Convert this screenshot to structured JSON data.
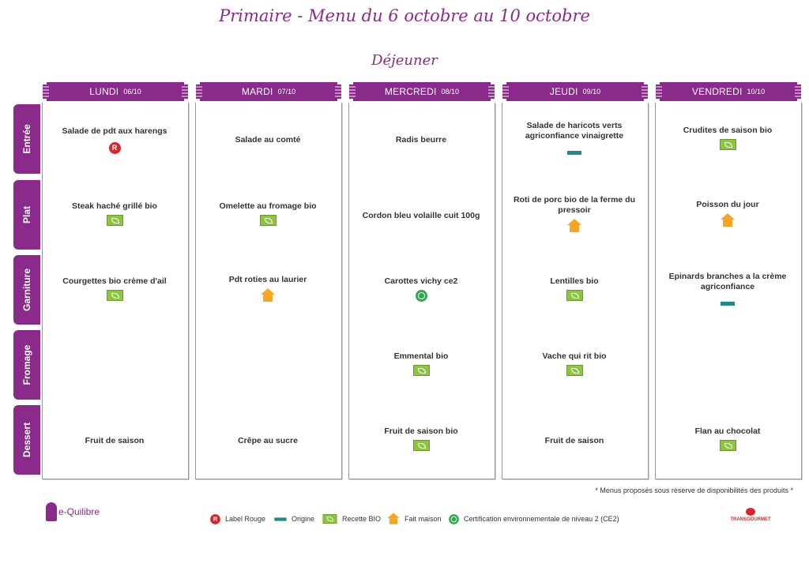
{
  "header": {
    "title": "Primaire - Menu du 6 octobre au 10 octobre",
    "subtitle": "Déjeuner"
  },
  "rows": [
    "Entrée",
    "Plat",
    "Garniture",
    "Fromage",
    "Dessert"
  ],
  "days": [
    {
      "name": "LUNDI",
      "date": "06/10",
      "items": [
        {
          "dish": "Salade de pdt aux harengs",
          "label": "label-rouge"
        },
        {
          "dish": "Steak haché grillé bio",
          "label": "bio"
        },
        {
          "dish": "Courgettes bio crème d'ail",
          "label": "bio"
        },
        {
          "dish": "",
          "label": ""
        },
        {
          "dish": "Fruit de saison",
          "label": ""
        }
      ]
    },
    {
      "name": "MARDI",
      "date": "07/10",
      "items": [
        {
          "dish": "Salade au comté",
          "label": ""
        },
        {
          "dish": "Omelette au fromage bio",
          "label": "bio"
        },
        {
          "dish": "Pdt roties au laurier",
          "label": "fait-maison"
        },
        {
          "dish": "",
          "label": ""
        },
        {
          "dish": "Crêpe au sucre",
          "label": ""
        }
      ]
    },
    {
      "name": "MERCREDI",
      "date": "08/10",
      "items": [
        {
          "dish": "Radis beurre",
          "label": ""
        },
        {
          "dish": "Cordon bleu volaille cuit 100g",
          "label": ""
        },
        {
          "dish": "Carottes vichy ce2",
          "label": "ce2"
        },
        {
          "dish": "Emmental bio",
          "label": "bio"
        },
        {
          "dish": "Fruit de saison bio",
          "label": "bio"
        }
      ]
    },
    {
      "name": "JEUDI",
      "date": "09/10",
      "items": [
        {
          "dish": "Salade de haricots verts agriconfiance vinaigrette",
          "label": "origine"
        },
        {
          "dish": "Roti de porc bio de la ferme du pressoir",
          "label": "fait-maison"
        },
        {
          "dish": "Lentilles bio",
          "label": "bio"
        },
        {
          "dish": "Vache qui rit bio",
          "label": "bio"
        },
        {
          "dish": "Fruit de saison",
          "label": ""
        }
      ]
    },
    {
      "name": "VENDREDI",
      "date": "10/10",
      "items": [
        {
          "dish": "Crudites de saison bio",
          "label": "bio"
        },
        {
          "dish": "Poisson du jour",
          "label": "fait-maison"
        },
        {
          "dish": "Epinards branches a la crème agriconfiance",
          "label": "origine"
        },
        {
          "dish": "",
          "label": ""
        },
        {
          "dish": "Flan au chocolat",
          "label": "bio"
        }
      ]
    }
  ],
  "footer": {
    "note": "* Menus proposés sous réserve de disponibilités des produits *",
    "brand": "e-Quilibre",
    "partner": "TRANSGOURMET",
    "legend": [
      {
        "icon": "label-rouge",
        "text": "Label Rouge"
      },
      {
        "icon": "origine",
        "text": "Origine"
      },
      {
        "icon": "bio",
        "text": "Recette BIO"
      },
      {
        "icon": "fait-maison",
        "text": "Fait maison"
      },
      {
        "icon": "ce2",
        "text": "Certification environnementale de niveau 2 (CE2)"
      }
    ]
  },
  "colors": {
    "accent": "#8a2a8a",
    "bio": "#8cc63f",
    "label_rouge": "#d9262b",
    "fait_maison": "#f6a623",
    "origine": "#1e8a8a",
    "ce2": "#2fa84f"
  }
}
